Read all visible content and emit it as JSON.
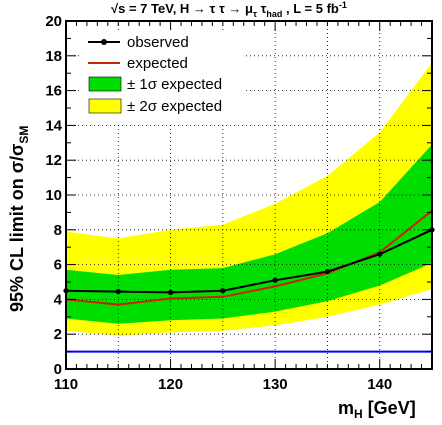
{
  "chart_data": {
    "type": "line",
    "title": "√s = 7 TeV, H → τ τ → μ τ , L = 5 fb⁻¹",
    "title_parts": {
      "prefix": "√s = 7 TeV, H → τ τ → μ",
      "sub_mu": "τ",
      "tau": " τ",
      "sub_tau": "had",
      "suffix": " , L = 5 fb",
      "sup": "-1"
    },
    "xlabel": "m",
    "xlabel_sub": "H",
    "xlabel_unit": " [GeV]",
    "ylabel": "95% CL limit on σ/σ",
    "ylabel_sub": "SM",
    "xlim": [
      110,
      145
    ],
    "ylim": [
      0,
      20
    ],
    "x_ticks": [
      "110",
      "120",
      "130",
      "140"
    ],
    "y_ticks": [
      "0",
      "2",
      "4",
      "6",
      "8",
      "10",
      "12",
      "14",
      "16",
      "18",
      "20"
    ],
    "grid": true,
    "legend_position": "top-left",
    "x": [
      110,
      115,
      120,
      125,
      130,
      135,
      140,
      145
    ],
    "series": [
      {
        "name": "observed",
        "color": "#000000",
        "values": [
          4.5,
          4.45,
          4.4,
          4.5,
          5.1,
          5.6,
          6.6,
          8.0
        ]
      },
      {
        "name": "expected",
        "color": "#cc2200",
        "values": [
          4.0,
          3.7,
          4.05,
          4.15,
          4.75,
          5.5,
          6.7,
          9.1
        ]
      }
    ],
    "band_1sigma": {
      "name": "± 1σ expected",
      "color": "#00dd00",
      "low": [
        2.9,
        2.6,
        2.8,
        2.9,
        3.3,
        3.9,
        4.8,
        6.1
      ],
      "high": [
        5.7,
        5.4,
        5.7,
        5.8,
        6.6,
        7.8,
        9.6,
        12.9
      ]
    },
    "band_2sigma": {
      "name": "± 2σ expected",
      "color": "#ffff00",
      "low": [
        2.2,
        1.9,
        2.1,
        2.2,
        2.5,
        3.0,
        3.7,
        4.6
      ],
      "high": [
        7.9,
        7.5,
        8.0,
        8.3,
        9.5,
        11.1,
        13.6,
        17.6
      ]
    },
    "reference_line": {
      "y": 1,
      "color": "#0000ff"
    }
  }
}
